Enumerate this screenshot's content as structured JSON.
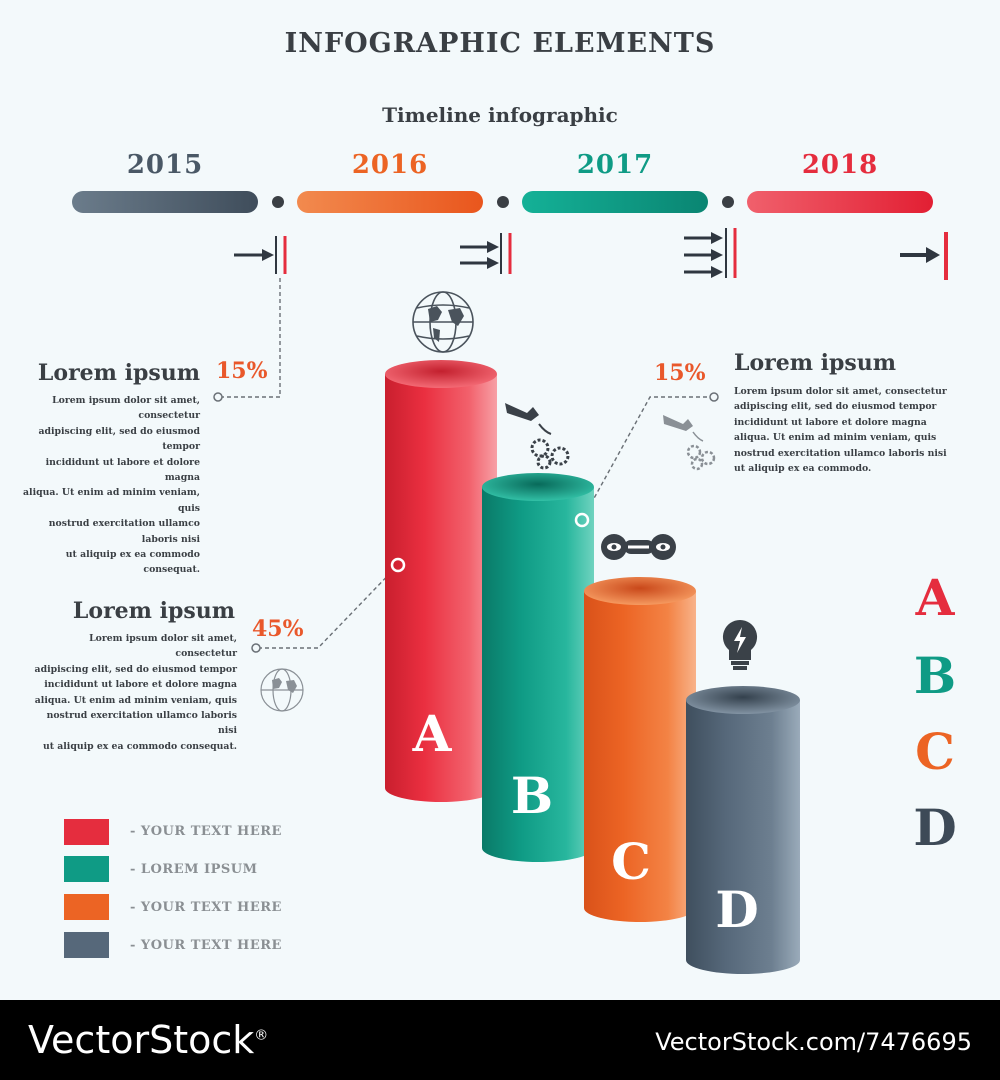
{
  "header": {
    "title": "INFOGRAPHIC ELEMENTS",
    "subtitle": "Timeline infographic"
  },
  "timeline": [
    {
      "year": "2015",
      "color": "#4a5866"
    },
    {
      "year": "2016",
      "color": "#ec6424"
    },
    {
      "year": "2017",
      "color": "#0f9b85"
    },
    {
      "year": "2018",
      "color": "#e52d3e"
    }
  ],
  "callouts": [
    {
      "heading": "Lorem ipsum",
      "percent": "15%",
      "lines": [
        "Lorem ipsum dolor sit amet, consectetur",
        "adipiscing elit, sed do eiusmod tempor",
        "incididunt ut labore et dolore magna",
        "aliqua. Ut enim ad minim veniam, quis",
        "nostrud exercitation ullamco laboris nisi",
        "ut aliquip ex ea commodo consequat."
      ]
    },
    {
      "heading": "Lorem ipsum",
      "percent": "45%",
      "lines": [
        "Lorem ipsum dolor sit amet, consectetur",
        "adipiscing elit, sed do eiusmod tempor",
        "incididunt ut labore et dolore magna",
        "aliqua. Ut enim ad minim veniam, quis",
        "nostrud exercitation ullamco laboris nisi",
        "ut aliquip ex ea commodo consequat."
      ]
    },
    {
      "heading": "Lorem ipsum",
      "percent": "15%",
      "lines": [
        "Lorem ipsum dolor sit amet, consectetur",
        "adipiscing elit, sed do eiusmod tempor",
        "incididunt ut labore et dolore magna",
        "aliqua. Ut enim ad minim veniam, quis",
        "nostrud exercitation ullamco laboris nisi",
        "ut aliquip ex ea commodo."
      ]
    }
  ],
  "cylinders": [
    {
      "label": "A",
      "color": "#e52d3e"
    },
    {
      "label": "B",
      "color": "#0f9b85"
    },
    {
      "label": "C",
      "color": "#ec6424"
    },
    {
      "label": "D",
      "color": "#56687a"
    }
  ],
  "legend": [
    {
      "text": "- YOUR TEXT HERE",
      "color": "#e52d3e"
    },
    {
      "text": "- LOREM IPSUM",
      "color": "#0f9b85"
    },
    {
      "text": "- YOUR TEXT HERE",
      "color": "#ec6424"
    },
    {
      "text": "- YOUR TEXT HERE",
      "color": "#56687a"
    }
  ],
  "letters": [
    {
      "letter": "A",
      "color": "#e52d3e"
    },
    {
      "letter": "B",
      "color": "#0f9b85"
    },
    {
      "letter": "C",
      "color": "#ec6424"
    },
    {
      "letter": "D",
      "color": "#3d4a57"
    }
  ],
  "icons": [
    "globe-icon",
    "gears-icon",
    "eye-link-icon",
    "lightbulb-icon"
  ],
  "footer": {
    "brand": "VectorStock",
    "reg": "®",
    "url": "VectorStock.com/7476695"
  }
}
